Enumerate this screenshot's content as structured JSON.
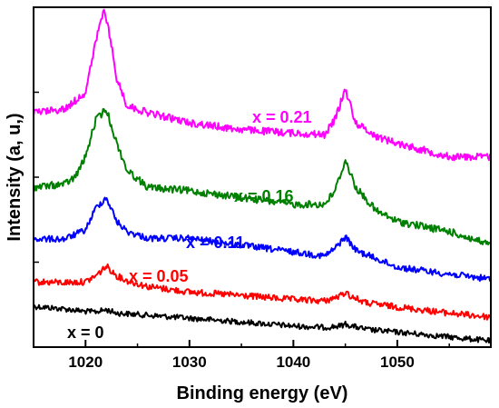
{
  "chart_data": {
    "type": "line",
    "xlabel": "Binding energy (eV)",
    "ylabel": "Intensity (a, u,)",
    "xlim": [
      1015,
      1059
    ],
    "ylim": [
      0,
      1
    ],
    "x_ticks": [
      1020,
      1030,
      1040,
      1050
    ],
    "y_ticks_labels": "none",
    "grid": false,
    "legend": "none",
    "series": [
      {
        "name": "x = 0",
        "color": "#000000",
        "points": [
          [
            1015,
            0.12
          ],
          [
            1018,
            0.112
          ],
          [
            1020,
            0.105
          ],
          [
            1021,
            0.104
          ],
          [
            1022,
            0.11
          ],
          [
            1023,
            0.1
          ],
          [
            1025,
            0.096
          ],
          [
            1030,
            0.085
          ],
          [
            1035,
            0.074
          ],
          [
            1040,
            0.062
          ],
          [
            1043,
            0.058
          ],
          [
            1044.5,
            0.062
          ],
          [
            1045,
            0.068
          ],
          [
            1045.5,
            0.063
          ],
          [
            1047,
            0.052
          ],
          [
            1050,
            0.044
          ],
          [
            1055,
            0.03
          ],
          [
            1059,
            0.018
          ]
        ]
      },
      {
        "name": "x = 0.05",
        "color": "#ff0000",
        "points": [
          [
            1015,
            0.192
          ],
          [
            1018,
            0.19
          ],
          [
            1020,
            0.192
          ],
          [
            1021,
            0.21
          ],
          [
            1022,
            0.238
          ],
          [
            1023,
            0.21
          ],
          [
            1024,
            0.195
          ],
          [
            1026,
            0.178
          ],
          [
            1030,
            0.162
          ],
          [
            1035,
            0.152
          ],
          [
            1040,
            0.14
          ],
          [
            1043,
            0.136
          ],
          [
            1044.5,
            0.15
          ],
          [
            1045,
            0.162
          ],
          [
            1045.5,
            0.15
          ],
          [
            1047,
            0.13
          ],
          [
            1050,
            0.118
          ],
          [
            1055,
            0.1
          ],
          [
            1059,
            0.088
          ]
        ]
      },
      {
        "name": "x = 0.11",
        "color": "#0000ff",
        "points": [
          [
            1015,
            0.318
          ],
          [
            1018,
            0.318
          ],
          [
            1020,
            0.345
          ],
          [
            1021,
            0.41
          ],
          [
            1022,
            0.44
          ],
          [
            1023,
            0.37
          ],
          [
            1024,
            0.34
          ],
          [
            1026,
            0.32
          ],
          [
            1030,
            0.32
          ],
          [
            1035,
            0.3
          ],
          [
            1040,
            0.28
          ],
          [
            1043,
            0.268
          ],
          [
            1044,
            0.29
          ],
          [
            1045,
            0.325
          ],
          [
            1046,
            0.285
          ],
          [
            1048,
            0.26
          ],
          [
            1050,
            0.235
          ],
          [
            1055,
            0.215
          ],
          [
            1059,
            0.2
          ]
        ]
      },
      {
        "name": "x = 0.16",
        "color": "#008000",
        "points": [
          [
            1015,
            0.47
          ],
          [
            1018,
            0.48
          ],
          [
            1019,
            0.5
          ],
          [
            1020,
            0.56
          ],
          [
            1021,
            0.67
          ],
          [
            1022,
            0.7
          ],
          [
            1023,
            0.6
          ],
          [
            1024,
            0.52
          ],
          [
            1026,
            0.47
          ],
          [
            1030,
            0.46
          ],
          [
            1035,
            0.44
          ],
          [
            1040,
            0.42
          ],
          [
            1043,
            0.42
          ],
          [
            1044,
            0.46
          ],
          [
            1045,
            0.55
          ],
          [
            1046,
            0.47
          ],
          [
            1048,
            0.4
          ],
          [
            1050,
            0.37
          ],
          [
            1055,
            0.34
          ],
          [
            1059,
            0.3
          ]
        ]
      },
      {
        "name": "x = 0.21",
        "color": "#ff00ff",
        "points": [
          [
            1015,
            0.69
          ],
          [
            1018,
            0.7
          ],
          [
            1020,
            0.75
          ],
          [
            1021,
            0.9
          ],
          [
            1021.7,
            0.99
          ],
          [
            1022.2,
            0.94
          ],
          [
            1023,
            0.79
          ],
          [
            1024,
            0.71
          ],
          [
            1026,
            0.69
          ],
          [
            1030,
            0.66
          ],
          [
            1035,
            0.64
          ],
          [
            1040,
            0.63
          ],
          [
            1043,
            0.625
          ],
          [
            1044,
            0.67
          ],
          [
            1045,
            0.76
          ],
          [
            1046,
            0.66
          ],
          [
            1048,
            0.62
          ],
          [
            1050,
            0.6
          ],
          [
            1055,
            0.56
          ],
          [
            1059,
            0.56
          ]
        ]
      }
    ]
  }
}
